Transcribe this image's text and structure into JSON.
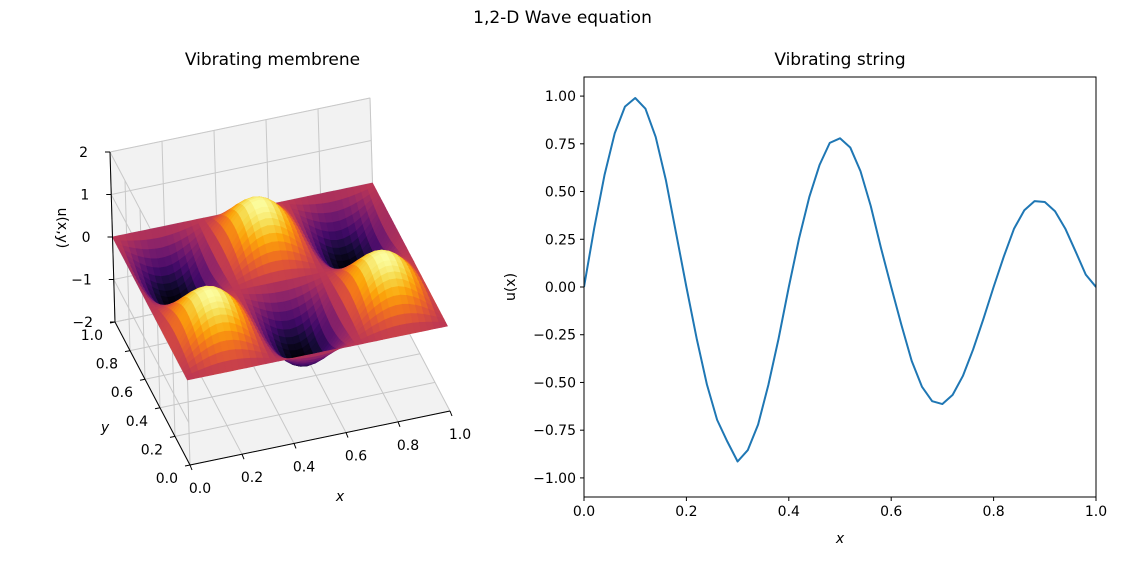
{
  "figure": {
    "suptitle": "1,2-D Wave equation"
  },
  "chart_data": [
    {
      "type": "surface",
      "title": "Vibrating membrene",
      "xlabel": "x",
      "ylabel": "y",
      "zlabel": "u(x,y)",
      "xlim": [
        0,
        1
      ],
      "ylim": [
        0,
        1
      ],
      "zlim": [
        -2,
        2
      ],
      "xticks": [
        "0.0",
        "0.2",
        "0.4",
        "0.6",
        "0.8",
        "1.0"
      ],
      "yticks": [
        "0.0",
        "0.2",
        "0.4",
        "0.6",
        "0.8",
        "1.0"
      ],
      "zticks": [
        "−2",
        "−1",
        "0",
        "1",
        "2"
      ],
      "colormap": "inferno",
      "surface_function": "u(x,y) = sin(3*pi*x) * sin(2*pi*y)",
      "grid": true
    },
    {
      "type": "line",
      "title": "Vibrating string",
      "xlabel": "x",
      "ylabel": "u(x)",
      "xlim": [
        0,
        1
      ],
      "ylim": [
        -1.1,
        1.1
      ],
      "xticks": [
        "0.0",
        "0.2",
        "0.4",
        "0.6",
        "0.8",
        "1.0"
      ],
      "yticks": [
        "−1.00",
        "−0.75",
        "−0.50",
        "−0.25",
        "0.00",
        "0.25",
        "0.50",
        "0.75",
        "1.00"
      ],
      "grid": false,
      "series": [
        {
          "name": "u(x)",
          "color": "#1f77b4",
          "x": [
            0.0,
            0.02,
            0.04,
            0.06,
            0.08,
            0.1,
            0.12,
            0.14,
            0.16,
            0.18,
            0.2,
            0.22,
            0.24,
            0.26,
            0.28,
            0.3,
            0.32,
            0.34,
            0.36,
            0.38,
            0.4,
            0.42,
            0.44,
            0.46,
            0.48,
            0.5,
            0.52,
            0.54,
            0.56,
            0.58,
            0.6,
            0.62,
            0.64,
            0.66,
            0.68,
            0.7,
            0.72,
            0.74,
            0.76,
            0.78,
            0.8,
            0.82,
            0.84,
            0.86,
            0.88,
            0.9,
            0.92,
            0.94,
            0.96,
            0.98,
            1.0
          ],
          "y": [
            0.0,
            0.309,
            0.586,
            0.805,
            0.945,
            0.99,
            0.934,
            0.786,
            0.559,
            0.28,
            0.0,
            -0.269,
            -0.51,
            -0.696,
            -0.81,
            -0.914,
            -0.854,
            -0.721,
            -0.514,
            -0.271,
            0.0,
            0.254,
            0.471,
            0.639,
            0.755,
            0.779,
            0.731,
            0.607,
            0.425,
            0.205,
            0.0,
            -0.199,
            -0.387,
            -0.522,
            -0.598,
            -0.613,
            -0.565,
            -0.466,
            -0.327,
            -0.168,
            0.0,
            0.16,
            0.306,
            0.402,
            0.45,
            0.445,
            0.397,
            0.306,
            0.187,
            0.065,
            0.0
          ]
        }
      ]
    }
  ]
}
